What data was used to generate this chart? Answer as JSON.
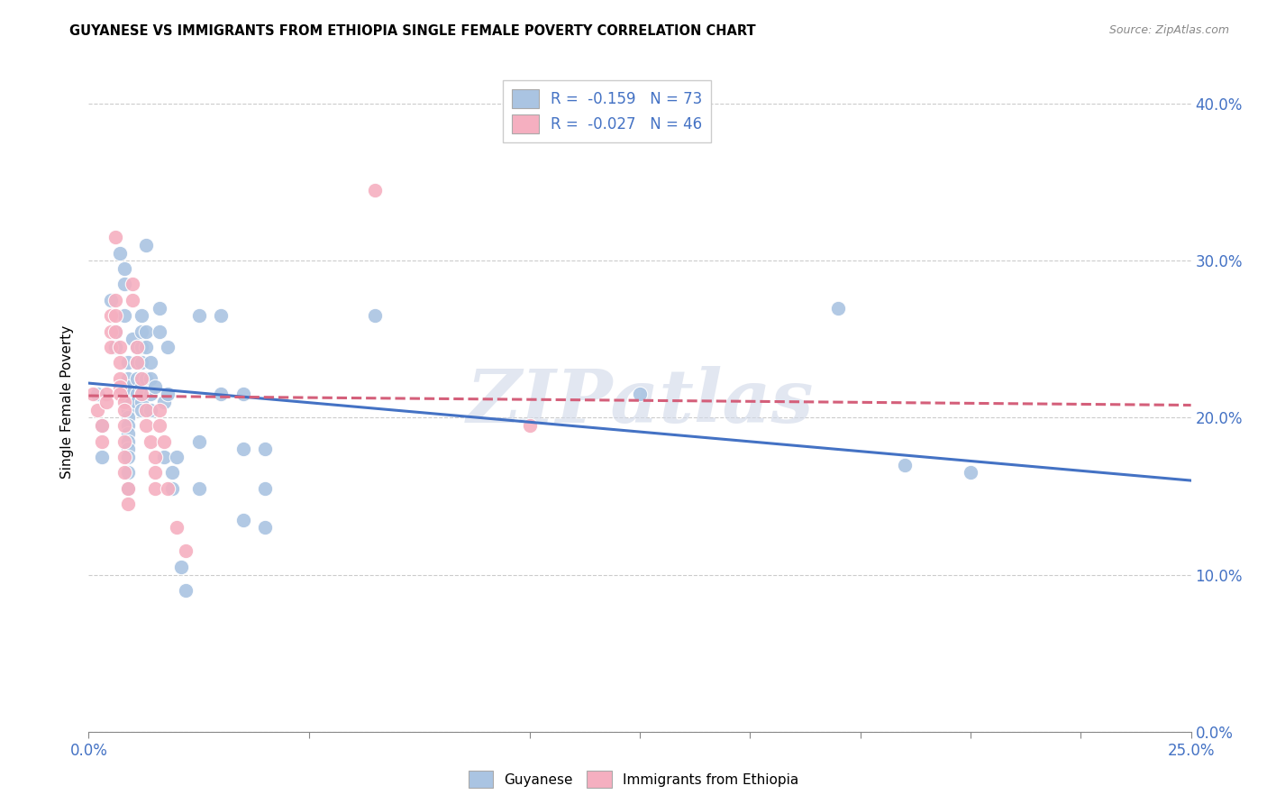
{
  "title": "GUYANESE VS IMMIGRANTS FROM ETHIOPIA SINGLE FEMALE POVERTY CORRELATION CHART",
  "source": "Source: ZipAtlas.com",
  "ylabel_label": "Single Female Poverty",
  "xlim": [
    0.0,
    0.25
  ],
  "ylim": [
    0.0,
    0.42
  ],
  "legend_labels": [
    "Guyanese",
    "Immigrants from Ethiopia"
  ],
  "legend_R": [
    "R = ",
    "R = "
  ],
  "legend_R_val": [
    "-0.159",
    "-0.027"
  ],
  "legend_N_label": [
    "N = ",
    "N = "
  ],
  "legend_N_val": [
    "73",
    "46"
  ],
  "color_blue": "#aac4e2",
  "color_pink": "#f5afc0",
  "line_blue": "#4472c4",
  "line_pink": "#d45f7a",
  "watermark": "ZIPatlas",
  "blue_scatter": [
    [
      0.002,
      0.215
    ],
    [
      0.003,
      0.195
    ],
    [
      0.003,
      0.175
    ],
    [
      0.005,
      0.275
    ],
    [
      0.006,
      0.255
    ],
    [
      0.006,
      0.245
    ],
    [
      0.007,
      0.305
    ],
    [
      0.008,
      0.295
    ],
    [
      0.008,
      0.285
    ],
    [
      0.008,
      0.265
    ],
    [
      0.009,
      0.235
    ],
    [
      0.009,
      0.225
    ],
    [
      0.009,
      0.22
    ],
    [
      0.009,
      0.215
    ],
    [
      0.009,
      0.21
    ],
    [
      0.009,
      0.205
    ],
    [
      0.009,
      0.2
    ],
    [
      0.009,
      0.195
    ],
    [
      0.009,
      0.19
    ],
    [
      0.009,
      0.185
    ],
    [
      0.009,
      0.18
    ],
    [
      0.009,
      0.175
    ],
    [
      0.009,
      0.165
    ],
    [
      0.009,
      0.155
    ],
    [
      0.01,
      0.25
    ],
    [
      0.011,
      0.245
    ],
    [
      0.011,
      0.235
    ],
    [
      0.011,
      0.225
    ],
    [
      0.011,
      0.215
    ],
    [
      0.011,
      0.21
    ],
    [
      0.012,
      0.265
    ],
    [
      0.012,
      0.255
    ],
    [
      0.012,
      0.245
    ],
    [
      0.012,
      0.235
    ],
    [
      0.012,
      0.225
    ],
    [
      0.012,
      0.22
    ],
    [
      0.012,
      0.215
    ],
    [
      0.012,
      0.21
    ],
    [
      0.012,
      0.205
    ],
    [
      0.013,
      0.31
    ],
    [
      0.013,
      0.255
    ],
    [
      0.013,
      0.245
    ],
    [
      0.013,
      0.225
    ],
    [
      0.014,
      0.235
    ],
    [
      0.014,
      0.225
    ],
    [
      0.014,
      0.215
    ],
    [
      0.014,
      0.205
    ],
    [
      0.015,
      0.22
    ],
    [
      0.016,
      0.27
    ],
    [
      0.016,
      0.255
    ],
    [
      0.017,
      0.21
    ],
    [
      0.017,
      0.175
    ],
    [
      0.018,
      0.245
    ],
    [
      0.018,
      0.215
    ],
    [
      0.019,
      0.165
    ],
    [
      0.019,
      0.155
    ],
    [
      0.02,
      0.175
    ],
    [
      0.021,
      0.105
    ],
    [
      0.022,
      0.09
    ],
    [
      0.025,
      0.265
    ],
    [
      0.025,
      0.185
    ],
    [
      0.025,
      0.155
    ],
    [
      0.03,
      0.265
    ],
    [
      0.03,
      0.215
    ],
    [
      0.035,
      0.215
    ],
    [
      0.035,
      0.18
    ],
    [
      0.035,
      0.135
    ],
    [
      0.04,
      0.18
    ],
    [
      0.04,
      0.155
    ],
    [
      0.04,
      0.13
    ],
    [
      0.065,
      0.265
    ],
    [
      0.125,
      0.215
    ],
    [
      0.17,
      0.27
    ],
    [
      0.185,
      0.17
    ],
    [
      0.2,
      0.165
    ]
  ],
  "pink_scatter": [
    [
      0.001,
      0.215
    ],
    [
      0.002,
      0.205
    ],
    [
      0.003,
      0.195
    ],
    [
      0.003,
      0.185
    ],
    [
      0.004,
      0.215
    ],
    [
      0.004,
      0.21
    ],
    [
      0.005,
      0.265
    ],
    [
      0.005,
      0.255
    ],
    [
      0.005,
      0.245
    ],
    [
      0.006,
      0.315
    ],
    [
      0.006,
      0.275
    ],
    [
      0.006,
      0.265
    ],
    [
      0.006,
      0.255
    ],
    [
      0.007,
      0.245
    ],
    [
      0.007,
      0.235
    ],
    [
      0.007,
      0.225
    ],
    [
      0.007,
      0.22
    ],
    [
      0.007,
      0.215
    ],
    [
      0.008,
      0.21
    ],
    [
      0.008,
      0.205
    ],
    [
      0.008,
      0.195
    ],
    [
      0.008,
      0.185
    ],
    [
      0.008,
      0.175
    ],
    [
      0.008,
      0.165
    ],
    [
      0.009,
      0.155
    ],
    [
      0.009,
      0.145
    ],
    [
      0.01,
      0.285
    ],
    [
      0.01,
      0.275
    ],
    [
      0.011,
      0.245
    ],
    [
      0.011,
      0.235
    ],
    [
      0.012,
      0.225
    ],
    [
      0.012,
      0.215
    ],
    [
      0.013,
      0.205
    ],
    [
      0.013,
      0.195
    ],
    [
      0.014,
      0.185
    ],
    [
      0.015,
      0.175
    ],
    [
      0.015,
      0.165
    ],
    [
      0.015,
      0.155
    ],
    [
      0.016,
      0.205
    ],
    [
      0.016,
      0.195
    ],
    [
      0.017,
      0.185
    ],
    [
      0.018,
      0.155
    ],
    [
      0.02,
      0.13
    ],
    [
      0.022,
      0.115
    ],
    [
      0.065,
      0.345
    ],
    [
      0.1,
      0.195
    ]
  ],
  "blue_line_x": [
    0.0,
    0.25
  ],
  "blue_line_y": [
    0.222,
    0.16
  ],
  "pink_line_x": [
    0.0,
    0.25
  ],
  "pink_line_y": [
    0.214,
    0.208
  ]
}
